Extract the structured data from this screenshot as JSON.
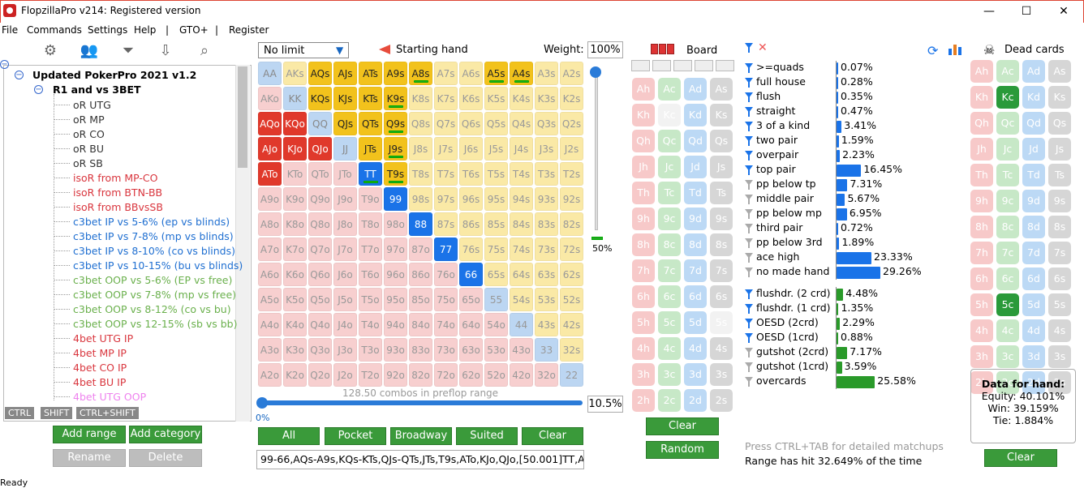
{
  "window": {
    "title": "FlopzillaPro v214: Registered version",
    "minimize": "—",
    "maximize": "☐",
    "close": "✕"
  },
  "menu": [
    "File",
    "Commands",
    "Settings",
    "Help",
    "|",
    "GTO+",
    "|",
    "Register"
  ],
  "tree": {
    "root": "Updated PokerPro 2021 v1.2",
    "group": "R1 and vs 3BET",
    "items": [
      {
        "label": "oR UTG",
        "color": "#333333"
      },
      {
        "label": "oR MP",
        "color": "#333333"
      },
      {
        "label": "oR CO",
        "color": "#333333"
      },
      {
        "label": "oR BU",
        "color": "#333333"
      },
      {
        "label": "oR SB",
        "color": "#333333"
      },
      {
        "label": "isoR from MP-CO",
        "color": "#d9363e"
      },
      {
        "label": "isoR from BTN-BB",
        "color": "#d9363e"
      },
      {
        "label": "isoR from BBvsSB",
        "color": "#d9363e"
      },
      {
        "label": "c3bet IP vs 5-6% (ep vs blinds)",
        "color": "#1f6fd1"
      },
      {
        "label": "c3bet IP vs 7-8% (mp vs blinds)",
        "color": "#1f6fd1"
      },
      {
        "label": "c3bet IP vs 8-10% (co vs blinds)",
        "color": "#1f6fd1"
      },
      {
        "label": "c3bet IP vs 10-15% (bu vs blinds)",
        "color": "#1f6fd1"
      },
      {
        "label": "c3bet OOP vs 5-6% (EP vs free)",
        "color": "#6ab04c"
      },
      {
        "label": "c3bet OOP vs 7-8% (mp vs free)",
        "color": "#6ab04c"
      },
      {
        "label": "c3bet OOP vs 8-12% (co vs bu)",
        "color": "#6ab04c"
      },
      {
        "label": "c3bet OOP vs 12-15% (sb vs bb)",
        "color": "#6ab04c"
      },
      {
        "label": "4bet UTG IP",
        "color": "#d9363e"
      },
      {
        "label": "4bet MP IP",
        "color": "#d9363e"
      },
      {
        "label": "4bet CO IP",
        "color": "#d9363e"
      },
      {
        "label": "4bet BU IP",
        "color": "#d9363e"
      },
      {
        "label": "4bet UTG OOP",
        "color": "#ee82ee"
      }
    ],
    "modkeys": [
      "CTRL",
      "SHIFT",
      "CTRL+SHIFT"
    ]
  },
  "tree_buttons": {
    "add_range": "Add range",
    "add_category": "Add category",
    "rename": "Rename",
    "delete": "Delete"
  },
  "range": {
    "game": "No limit",
    "starting_hand": "Starting hand",
    "weight_label": "Weight:",
    "weight": "100%",
    "slider_pct": "50%",
    "combos": "128.50 combos in preflop range",
    "slider_min": "0%",
    "range_pct": "10.5%",
    "text": "99-66,AQs-A9s,KQs-KTs,QJs-QTs,JTs,T9s,ATo,KJo,QJo,[50.001]TT,A",
    "grid": [
      [
        "AA",
        "AKs",
        "AQs",
        "AJs",
        "ATs",
        "A9s",
        "A8s",
        "A7s",
        "A6s",
        "A5s",
        "A4s",
        "A3s",
        "A2s"
      ],
      [
        "AKo",
        "KK",
        "KQs",
        "KJs",
        "KTs",
        "K9s",
        "K8s",
        "K7s",
        "K6s",
        "K5s",
        "K4s",
        "K3s",
        "K2s"
      ],
      [
        "AQo",
        "KQo",
        "QQ",
        "QJs",
        "QTs",
        "Q9s",
        "Q8s",
        "Q7s",
        "Q6s",
        "Q5s",
        "Q4s",
        "Q3s",
        "Q2s"
      ],
      [
        "AJo",
        "KJo",
        "QJo",
        "JJ",
        "JTs",
        "J9s",
        "J8s",
        "J7s",
        "J6s",
        "J5s",
        "J4s",
        "J3s",
        "J2s"
      ],
      [
        "ATo",
        "KTo",
        "QTo",
        "JTo",
        "TT",
        "T9s",
        "T8s",
        "T7s",
        "T6s",
        "T5s",
        "T4s",
        "T3s",
        "T2s"
      ],
      [
        "A9o",
        "K9o",
        "Q9o",
        "J9o",
        "T9o",
        "99",
        "98s",
        "97s",
        "96s",
        "95s",
        "94s",
        "93s",
        "92s"
      ],
      [
        "A8o",
        "K8o",
        "Q8o",
        "J8o",
        "T8o",
        "98o",
        "88",
        "87s",
        "86s",
        "85s",
        "84s",
        "83s",
        "82s"
      ],
      [
        "A7o",
        "K7o",
        "Q7o",
        "J7o",
        "T7o",
        "97o",
        "87o",
        "77",
        "76s",
        "75s",
        "74s",
        "73s",
        "72s"
      ],
      [
        "A6o",
        "K6o",
        "Q6o",
        "J6o",
        "T6o",
        "96o",
        "86o",
        "76o",
        "66",
        "65s",
        "64s",
        "63s",
        "62s"
      ],
      [
        "A5o",
        "K5o",
        "Q5o",
        "J5o",
        "T5o",
        "95o",
        "85o",
        "75o",
        "65o",
        "55",
        "54s",
        "53s",
        "52s"
      ],
      [
        "A4o",
        "K4o",
        "Q4o",
        "J4o",
        "T4o",
        "94o",
        "84o",
        "74o",
        "64o",
        "54o",
        "44",
        "43s",
        "42s"
      ],
      [
        "A3o",
        "K3o",
        "Q3o",
        "J3o",
        "T3o",
        "93o",
        "83o",
        "73o",
        "63o",
        "53o",
        "43o",
        "33",
        "32s"
      ],
      [
        "A2o",
        "K2o",
        "Q2o",
        "J2o",
        "T2o",
        "92o",
        "82o",
        "72o",
        "62o",
        "52o",
        "42o",
        "32o",
        "22"
      ]
    ],
    "selected": [
      "AQs",
      "AJs",
      "ATs",
      "A9s",
      "A8s",
      "A5s",
      "A4s",
      "KQs",
      "KJs",
      "KTs",
      "K9s",
      "QJs",
      "QTs",
      "Q9s",
      "JTs",
      "J9s",
      "T9s",
      "AQo",
      "KQo",
      "AJo",
      "KJo",
      "QJo",
      "ATo",
      "TT",
      "99",
      "88",
      "77",
      "66"
    ],
    "marked": [
      "A8s",
      "A5s",
      "A4s",
      "K9s",
      "Q9s",
      "J9s",
      "T9s",
      "TT"
    ],
    "buttons": [
      "All",
      "Pocket",
      "Broadway",
      "Suited",
      "Clear"
    ]
  },
  "board": {
    "label": "Board",
    "ranks": [
      "A",
      "K",
      "Q",
      "J",
      "T",
      "9",
      "8",
      "7",
      "6",
      "5",
      "4",
      "3",
      "2"
    ],
    "suits": [
      "h",
      "c",
      "d",
      "s"
    ],
    "blank": [
      "Kc",
      "5s"
    ],
    "clear": "Clear",
    "random": "Random"
  },
  "made_hands": [
    {
      "label": ">=quads",
      "pct": "0.07%",
      "value": 0.07,
      "active": true
    },
    {
      "label": "full house",
      "pct": "0.28%",
      "value": 0.28,
      "active": true
    },
    {
      "label": "flush",
      "pct": "0.35%",
      "value": 0.35,
      "active": true
    },
    {
      "label": "straight",
      "pct": "0.47%",
      "value": 0.47,
      "active": true
    },
    {
      "label": "3 of a kind",
      "pct": "3.41%",
      "value": 3.41,
      "active": true
    },
    {
      "label": "two pair",
      "pct": "1.59%",
      "value": 1.59,
      "active": true
    },
    {
      "label": "overpair",
      "pct": "2.23%",
      "value": 2.23,
      "active": true
    },
    {
      "label": "top pair",
      "pct": "16.45%",
      "value": 16.45,
      "active": true
    },
    {
      "label": "pp below tp",
      "pct": "7.31%",
      "value": 7.31,
      "active": false
    },
    {
      "label": "middle pair",
      "pct": "5.67%",
      "value": 5.67,
      "active": false
    },
    {
      "label": "pp below mp",
      "pct": "6.95%",
      "value": 6.95,
      "active": false
    },
    {
      "label": "third pair",
      "pct": "0.72%",
      "value": 0.72,
      "active": false
    },
    {
      "label": "pp below 3rd",
      "pct": "1.89%",
      "value": 1.89,
      "active": false
    },
    {
      "label": "ace high",
      "pct": "23.33%",
      "value": 23.33,
      "active": false
    },
    {
      "label": "no made hand",
      "pct": "29.26%",
      "value": 29.26,
      "active": false
    }
  ],
  "draws": [
    {
      "label": "flushdr. (2 crd)",
      "pct": "4.48%",
      "value": 4.48,
      "active": true
    },
    {
      "label": "flushdr. (1 crd)",
      "pct": "1.35%",
      "value": 1.35,
      "active": true
    },
    {
      "label": "OESD (2crd)",
      "pct": "2.29%",
      "value": 2.29,
      "active": true
    },
    {
      "label": "OESD (1crd)",
      "pct": "0.88%",
      "value": 0.88,
      "active": true
    },
    {
      "label": "gutshot (2crd)",
      "pct": "7.17%",
      "value": 7.17,
      "active": false
    },
    {
      "label": "gutshot (1crd)",
      "pct": "3.59%",
      "value": 3.59,
      "active": false
    },
    {
      "label": "overcards",
      "pct": "25.58%",
      "value": 25.58,
      "active": false
    }
  ],
  "info": {
    "press_ctrl": "Press CTRL+TAB for detailed matchups",
    "range_hit": "Range has hit 32.649% of the time"
  },
  "dead_cards": {
    "label": "Dead cards",
    "selected": [
      "Kc",
      "5c"
    ],
    "clear": "Clear"
  },
  "data_for_hand": {
    "title": "Data for hand:",
    "equity": "Equity: 40.101%",
    "win": "Win: 39.159%",
    "tie": "Tie: 1.884%"
  },
  "colors": {
    "selected_cell": "#f2c21c",
    "suited_cell": "#fae9a6",
    "offsuit_cell": "#f7cfcf",
    "pair_cell": "#bcd6f2",
    "selected_offsuit": "#e0392b",
    "selected_pair": "#1a73e8",
    "made_bar": "#1a73e8",
    "draw_bar": "#2a9a2a"
  },
  "status": "Ready"
}
